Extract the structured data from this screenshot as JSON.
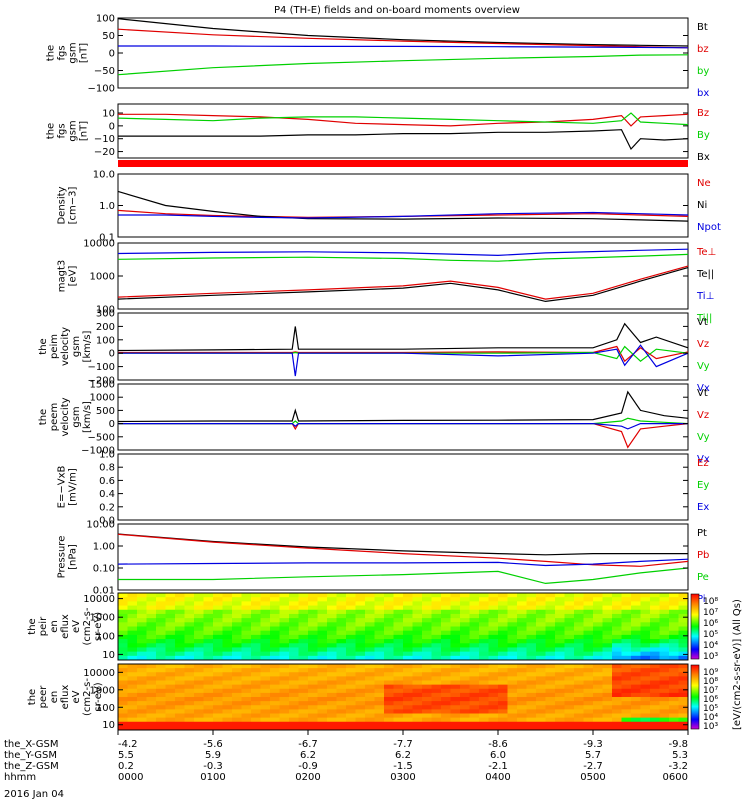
{
  "title": "P4 (TH-E) fields and on-board moments overview",
  "date_label": "2016 Jan 04",
  "ephemeris": {
    "rows": [
      {
        "name": "the_X-GSM",
        "values": [
          "-4.2",
          "-5.6",
          "-6.7",
          "-7.7",
          "-8.6",
          "-9.3",
          "-9.8"
        ]
      },
      {
        "name": "the_Y-GSM",
        "values": [
          "5.5",
          "5.9",
          "6.2",
          "6.2",
          "6.0",
          "5.7",
          "5.3"
        ]
      },
      {
        "name": "the_Z-GSM",
        "values": [
          "0.2",
          "-0.3",
          "-0.9",
          "-1.5",
          "-2.1",
          "-2.7",
          "-3.2"
        ]
      },
      {
        "name": "hhmm",
        "values": [
          "0000",
          "0100",
          "0200",
          "0300",
          "0400",
          "0500",
          "0600"
        ]
      }
    ]
  },
  "colors": {
    "black": "#000000",
    "red": "#e00000",
    "green": "#00d000",
    "blue": "#0000e0"
  },
  "colorbar_units": "[eV/(cm2-s-sr-eV)] (All Qs)",
  "chart_data": [
    {
      "type": "line",
      "id": "p1",
      "ylabel": [
        "the",
        "fgs",
        "gsm",
        "[nT]"
      ],
      "ylim": [
        -100,
        100
      ],
      "yscale": "linear",
      "ticks": [
        {
          "v": 100,
          "t": "100"
        },
        {
          "v": 50,
          "t": "50"
        },
        {
          "v": 0,
          "t": "0"
        },
        {
          "v": -50,
          "t": "−50"
        },
        {
          "v": -100,
          "t": "−100"
        }
      ],
      "x": [
        0,
        60,
        120,
        180,
        240,
        300,
        330,
        360
      ],
      "series": [
        {
          "name": "Bt",
          "color": "#000000",
          "values": [
            98,
            70,
            50,
            38,
            30,
            24,
            22,
            20
          ]
        },
        {
          "name": "bz",
          "color": "#e00000",
          "values": [
            68,
            52,
            42,
            34,
            27,
            21,
            18,
            15
          ]
        },
        {
          "name": "by",
          "color": "#00d000",
          "values": [
            -62,
            -42,
            -30,
            -22,
            -15,
            -10,
            -6,
            -5
          ]
        },
        {
          "name": "bx",
          "color": "#0000e0",
          "values": [
            20,
            20,
            19,
            19,
            18,
            17,
            16,
            15
          ]
        }
      ]
    },
    {
      "type": "line",
      "id": "p2",
      "ylabel": [
        "the",
        "fgs",
        "gsm",
        "[nT]"
      ],
      "ylim": [
        -25,
        17
      ],
      "yscale": "linear",
      "ticks": [
        {
          "v": 10,
          "t": "10"
        },
        {
          "v": 0,
          "t": "0"
        },
        {
          "v": -10,
          "t": "−10"
        },
        {
          "v": -20,
          "t": "−20"
        }
      ],
      "x": [
        0,
        30,
        60,
        90,
        120,
        150,
        180,
        210,
        240,
        270,
        300,
        318,
        324,
        330,
        345,
        360
      ],
      "series": [
        {
          "name": "Bz",
          "color": "#e00000",
          "values": [
            9,
            9,
            8,
            7,
            5,
            2,
            1,
            0,
            2,
            3,
            5,
            8,
            0,
            7,
            8,
            9
          ]
        },
        {
          "name": "By",
          "color": "#00d000",
          "values": [
            6,
            5,
            4,
            6,
            7,
            7,
            6,
            5,
            4,
            3,
            2,
            4,
            10,
            3,
            2,
            1
          ]
        },
        {
          "name": "Bx",
          "color": "#000000",
          "values": [
            -8,
            -8,
            -8,
            -8,
            -7,
            -7,
            -6,
            -6,
            -5,
            -5,
            -4,
            -3,
            -18,
            -10,
            -11,
            -10
          ]
        }
      ]
    },
    {
      "type": "line",
      "id": "p3",
      "ylabel": [
        "Density",
        "[cm−3]"
      ],
      "ylim": [
        0.1,
        10
      ],
      "yscale": "log",
      "ticks": [
        {
          "v": 10,
          "t": "10.0"
        },
        {
          "v": 1,
          "t": "1.0"
        },
        {
          "v": 0.1,
          "t": "0.1"
        }
      ],
      "x": [
        0,
        30,
        60,
        90,
        120,
        180,
        240,
        300,
        330,
        360
      ],
      "series": [
        {
          "name": "Ne",
          "color": "#e00000",
          "values": [
            0.7,
            0.55,
            0.48,
            0.45,
            0.42,
            0.45,
            0.5,
            0.55,
            0.5,
            0.45
          ]
        },
        {
          "name": "Ni",
          "color": "#000000",
          "values": [
            2.8,
            1.0,
            0.65,
            0.45,
            0.38,
            0.37,
            0.4,
            0.38,
            0.35,
            0.32
          ]
        },
        {
          "name": "Npot",
          "color": "#0000e0",
          "values": [
            0.5,
            0.5,
            0.45,
            0.42,
            0.4,
            0.45,
            0.55,
            0.6,
            0.55,
            0.5
          ]
        }
      ]
    },
    {
      "type": "line",
      "id": "p4",
      "ylabel": [
        "magt3",
        "[eV]"
      ],
      "ylim": [
        100,
        10000
      ],
      "yscale": "log",
      "ticks": [
        {
          "v": 10000,
          "t": "10000"
        },
        {
          "v": 1000,
          "t": "1000"
        },
        {
          "v": 100,
          "t": "100"
        }
      ],
      "x": [
        0,
        60,
        120,
        180,
        210,
        240,
        270,
        300,
        330,
        360
      ],
      "series": [
        {
          "name": "Te⊥",
          "color": "#e00000",
          "values": [
            230,
            300,
            380,
            500,
            700,
            450,
            200,
            300,
            800,
            2000
          ]
        },
        {
          "name": "Te||",
          "color": "#000000",
          "values": [
            200,
            260,
            330,
            430,
            600,
            380,
            170,
            260,
            700,
            1800
          ]
        },
        {
          "name": "Ti⊥",
          "color": "#0000e0",
          "values": [
            4800,
            5200,
            5400,
            5000,
            4600,
            4200,
            5000,
            5500,
            6000,
            6500
          ]
        },
        {
          "name": "Ti||",
          "color": "#00d000",
          "values": [
            3200,
            3500,
            3700,
            3400,
            3000,
            2800,
            3300,
            3600,
            4000,
            4500
          ]
        }
      ]
    },
    {
      "type": "line",
      "id": "p5",
      "ylabel": [
        "the",
        "peim",
        "velocity",
        "gsm",
        "[km/s]"
      ],
      "ylim": [
        -200,
        300
      ],
      "yscale": "linear",
      "ticks": [
        {
          "v": 300,
          "t": "300"
        },
        {
          "v": 200,
          "t": "200"
        },
        {
          "v": 100,
          "t": "100"
        },
        {
          "v": 0,
          "t": "0"
        },
        {
          "v": -100,
          "t": "−100"
        },
        {
          "v": -200,
          "t": "−200"
        }
      ],
      "x": [
        0,
        60,
        110,
        112,
        114,
        180,
        240,
        300,
        315,
        320,
        330,
        340,
        360
      ],
      "series": [
        {
          "name": "Vt",
          "color": "#000000",
          "values": [
            20,
            25,
            30,
            200,
            30,
            30,
            40,
            40,
            100,
            220,
            80,
            120,
            40
          ]
        },
        {
          "name": "Vz",
          "color": "#e00000",
          "values": [
            5,
            5,
            5,
            10,
            5,
            5,
            10,
            5,
            50,
            -60,
            40,
            -40,
            10
          ]
        },
        {
          "name": "Vy",
          "color": "#00d000",
          "values": [
            0,
            0,
            0,
            5,
            0,
            0,
            0,
            5,
            -40,
            50,
            -60,
            30,
            0
          ]
        },
        {
          "name": "Vx",
          "color": "#0000e0",
          "values": [
            0,
            0,
            0,
            -170,
            0,
            0,
            -20,
            0,
            30,
            -90,
            60,
            -100,
            0
          ]
        }
      ]
    },
    {
      "type": "line",
      "id": "p6",
      "ylabel": [
        "the",
        "peem",
        "velocity",
        "gsm",
        "[km/s]"
      ],
      "ylim": [
        -1000,
        1500
      ],
      "yscale": "linear",
      "ticks": [
        {
          "v": 1500,
          "t": "1500"
        },
        {
          "v": 1000,
          "t": "1000"
        },
        {
          "v": 500,
          "t": "500"
        },
        {
          "v": 0,
          "t": "0"
        },
        {
          "v": -500,
          "t": "−500"
        },
        {
          "v": -1000,
          "t": "−1000"
        }
      ],
      "x": [
        0,
        60,
        110,
        112,
        114,
        180,
        240,
        300,
        318,
        322,
        330,
        345,
        360
      ],
      "series": [
        {
          "name": "Vt",
          "color": "#000000",
          "values": [
            80,
            100,
            100,
            500,
            100,
            120,
            130,
            150,
            400,
            1200,
            500,
            300,
            200
          ]
        },
        {
          "name": "Vz",
          "color": "#e00000",
          "values": [
            0,
            0,
            0,
            -200,
            0,
            0,
            0,
            0,
            -300,
            -900,
            -200,
            -100,
            0
          ]
        },
        {
          "name": "Vy",
          "color": "#00d000",
          "values": [
            0,
            0,
            0,
            100,
            0,
            0,
            0,
            0,
            100,
            200,
            100,
            50,
            0
          ]
        },
        {
          "name": "Vx",
          "color": "#0000e0",
          "values": [
            0,
            0,
            0,
            -100,
            0,
            0,
            0,
            0,
            -100,
            -200,
            0,
            0,
            0
          ]
        }
      ]
    },
    {
      "type": "line",
      "id": "p7",
      "ylabel": [
        "E=−VxB",
        "[mV/m]"
      ],
      "ylim": [
        0,
        1
      ],
      "yscale": "linear",
      "ticks": [
        {
          "v": 1.0,
          "t": "1.0"
        },
        {
          "v": 0.8,
          "t": "0.8"
        },
        {
          "v": 0.6,
          "t": "0.6"
        },
        {
          "v": 0.4,
          "t": "0.4"
        },
        {
          "v": 0.2,
          "t": "0.2"
        },
        {
          "v": 0.0,
          "t": "0.0"
        }
      ],
      "x": [],
      "series": [
        {
          "name": "Ez",
          "color": "#e00000",
          "values": []
        },
        {
          "name": "Ey",
          "color": "#00d000",
          "values": []
        },
        {
          "name": "Ex",
          "color": "#0000e0",
          "values": []
        }
      ]
    },
    {
      "type": "line",
      "id": "p8",
      "ylabel": [
        "Pressure",
        "[nPa]"
      ],
      "ylim": [
        0.01,
        10
      ],
      "yscale": "log",
      "ticks": [
        {
          "v": 10,
          "t": "10.00"
        },
        {
          "v": 1,
          "t": "1.00"
        },
        {
          "v": 0.1,
          "t": "0.10"
        },
        {
          "v": 0.01,
          "t": "0.01"
        }
      ],
      "x": [
        0,
        60,
        120,
        180,
        240,
        270,
        300,
        330,
        360
      ],
      "series": [
        {
          "name": "Pt",
          "color": "#000000",
          "values": [
            3.5,
            1.6,
            0.9,
            0.6,
            0.45,
            0.4,
            0.45,
            0.45,
            0.45
          ]
        },
        {
          "name": "Pb",
          "color": "#e00000",
          "values": [
            3.4,
            1.5,
            0.8,
            0.45,
            0.28,
            0.2,
            0.14,
            0.12,
            0.2
          ]
        },
        {
          "name": "Pe",
          "color": "#00d000",
          "values": [
            0.03,
            0.03,
            0.04,
            0.05,
            0.07,
            0.02,
            0.03,
            0.06,
            0.1
          ]
        },
        {
          "name": "Pi",
          "color": "#0000e0",
          "values": [
            0.15,
            0.16,
            0.17,
            0.17,
            0.18,
            0.13,
            0.15,
            0.2,
            0.25
          ]
        }
      ]
    },
    {
      "type": "heatmap",
      "id": "p9",
      "ylabel": [
        "the",
        "peir",
        "en",
        "eflux",
        "eV",
        "(cm2-s-",
        "sr-eV)"
      ],
      "ylim": [
        5,
        20000
      ],
      "yscale": "log",
      "ticks": [
        {
          "v": 10000,
          "t": "10000"
        },
        {
          "v": 1000,
          "t": "1000"
        },
        {
          "v": 100,
          "t": "100"
        },
        {
          "v": 10,
          "t": "10"
        }
      ],
      "colorbar_ticks": [
        "10⁸",
        "10⁷",
        "10⁶",
        "10⁵",
        "10⁴",
        "10³"
      ],
      "pattern": "ion"
    },
    {
      "type": "heatmap",
      "id": "p10",
      "ylabel": [
        "the",
        "peer",
        "en",
        "eflux",
        "eV",
        "(cm2-s-",
        "sr-eV)"
      ],
      "ylim": [
        5,
        30000
      ],
      "yscale": "log",
      "ticks": [
        {
          "v": 10000,
          "t": "10000"
        },
        {
          "v": 1000,
          "t": "1000"
        },
        {
          "v": 100,
          "t": "100"
        },
        {
          "v": 10,
          "t": "10"
        }
      ],
      "colorbar_ticks": [
        "10⁹",
        "10⁸",
        "10⁷",
        "10⁶",
        "10⁵",
        "10⁴",
        "10³"
      ],
      "pattern": "electron"
    }
  ]
}
